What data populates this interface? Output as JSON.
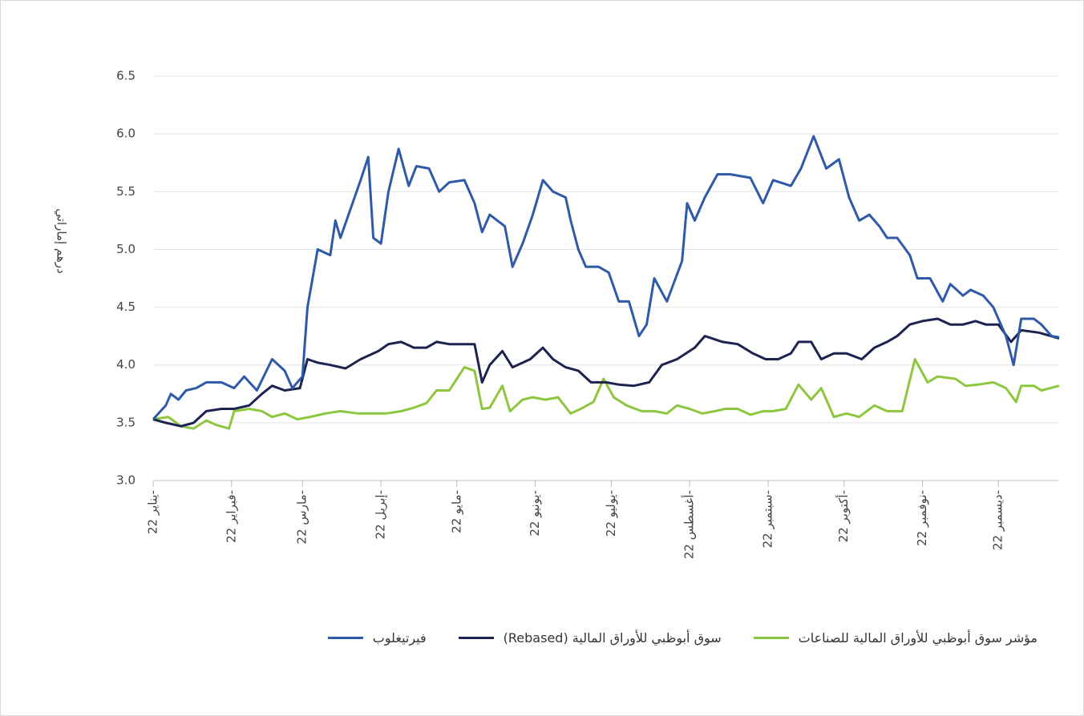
{
  "chart_data": {
    "type": "line",
    "y_label": "درهم إماراتي",
    "xlim": [
      0,
      358
    ],
    "xticks": [
      {
        "value": 0,
        "label": "يناير 22-"
      },
      {
        "value": 31,
        "label": "فبراير 22-"
      },
      {
        "value": 59,
        "label": "مارس 22-"
      },
      {
        "value": 90,
        "label": "إبريل 22-"
      },
      {
        "value": 120,
        "label": "مايو 22-"
      },
      {
        "value": 151,
        "label": "يونيو 22-"
      },
      {
        "value": 181,
        "label": "يوليو 22-"
      },
      {
        "value": 212,
        "label": "أغسطس 22-"
      },
      {
        "value": 243,
        "label": "سبتمبر 22-"
      },
      {
        "value": 273,
        "label": "أكتوبر 22-"
      },
      {
        "value": 304,
        "label": "نوفمبر 22-"
      },
      {
        "value": 334,
        "label": "ديسمبر 22-"
      }
    ],
    "ylim": [
      3,
      6.5
    ],
    "yticks": [
      {
        "value": 3,
        "label": "3.0"
      },
      3.5,
      {
        "value": 4,
        "label": "4.0"
      },
      4.5,
      {
        "value": 5,
        "label": "5.0"
      },
      5.5,
      {
        "value": 6,
        "label": "6.0"
      },
      6.5
    ],
    "grid": true,
    "legend": "bottom",
    "series": [
      {
        "name": "مؤشر سوق أبوظبي للأوراق المالية للصناعات",
        "color": "#8dc63f",
        "x": [
          0,
          6,
          11,
          16,
          21,
          25,
          30,
          32,
          38,
          43,
          47,
          52,
          57,
          62,
          68,
          74,
          81,
          85,
          92,
          98,
          103,
          108,
          112,
          117,
          123,
          127,
          130,
          133,
          138,
          141,
          146,
          150,
          155,
          160,
          165,
          169,
          174,
          178,
          182,
          187,
          193,
          198,
          203,
          207,
          212,
          217,
          222,
          226,
          231,
          236,
          241,
          245,
          250,
          255,
          260,
          264,
          269,
          274,
          279,
          285,
          290,
          296,
          301,
          306,
          310,
          317,
          321,
          326,
          332,
          337,
          341,
          343,
          348,
          351,
          358
        ],
        "values": [
          3.53,
          3.55,
          3.47,
          3.45,
          3.52,
          3.48,
          3.45,
          3.6,
          3.62,
          3.6,
          3.55,
          3.58,
          3.53,
          3.55,
          3.58,
          3.6,
          3.58,
          3.58,
          3.58,
          3.6,
          3.63,
          3.67,
          3.78,
          3.78,
          3.98,
          3.95,
          3.62,
          3.63,
          3.82,
          3.6,
          3.7,
          3.72,
          3.7,
          3.72,
          3.58,
          3.62,
          3.68,
          3.88,
          3.72,
          3.65,
          3.6,
          3.6,
          3.58,
          3.65,
          3.62,
          3.58,
          3.6,
          3.62,
          3.62,
          3.57,
          3.6,
          3.6,
          3.62,
          3.83,
          3.7,
          3.8,
          3.55,
          3.58,
          3.55,
          3.65,
          3.6,
          3.6,
          4.05,
          3.85,
          3.9,
          3.88,
          3.82,
          3.83,
          3.85,
          3.8,
          3.68,
          3.82,
          3.82,
          3.78,
          3.82
        ]
      },
      {
        "name": "سوق أبوظبي للأوراق المالية (Rebased)",
        "color": "#1c2350",
        "x": [
          0,
          5,
          11,
          16,
          21,
          27,
          32,
          38,
          43,
          47,
          52,
          58,
          61,
          65,
          70,
          76,
          82,
          89,
          93,
          98,
          103,
          108,
          112,
          117,
          127,
          130,
          133,
          138,
          142,
          149,
          154,
          158,
          163,
          168,
          173,
          179,
          184,
          190,
          196,
          201,
          207,
          214,
          218,
          225,
          231,
          237,
          242,
          247,
          252,
          255,
          260,
          264,
          269,
          274,
          280,
          285,
          290,
          294,
          299,
          304,
          310,
          315,
          320,
          325,
          329,
          334,
          339,
          343,
          350,
          358
        ],
        "values": [
          3.53,
          3.5,
          3.47,
          3.5,
          3.6,
          3.62,
          3.62,
          3.65,
          3.75,
          3.82,
          3.78,
          3.8,
          4.05,
          4.02,
          4.0,
          3.97,
          4.05,
          4.12,
          4.18,
          4.2,
          4.15,
          4.15,
          4.2,
          4.18,
          4.18,
          3.85,
          4.0,
          4.12,
          3.98,
          4.05,
          4.15,
          4.05,
          3.98,
          3.95,
          3.85,
          3.85,
          3.83,
          3.82,
          3.85,
          4.0,
          4.05,
          4.15,
          4.25,
          4.2,
          4.18,
          4.1,
          4.05,
          4.05,
          4.1,
          4.2,
          4.2,
          4.05,
          4.1,
          4.1,
          4.05,
          4.15,
          4.2,
          4.25,
          4.35,
          4.38,
          4.4,
          4.35,
          4.35,
          4.38,
          4.35,
          4.35,
          4.2,
          4.3,
          4.28,
          4.23
        ]
      },
      {
        "name": "فيرتيغلوب",
        "color": "#2e5aa8",
        "x": [
          0,
          5,
          7,
          10,
          13,
          17,
          21,
          27,
          32,
          36,
          41,
          47,
          52,
          55,
          59,
          61,
          65,
          70,
          72,
          74,
          78,
          82,
          85,
          87,
          90,
          93,
          97,
          101,
          104,
          109,
          113,
          117,
          123,
          127,
          130,
          133,
          139,
          142,
          146,
          150,
          154,
          158,
          163,
          165,
          168,
          171,
          176,
          180,
          184,
          188,
          192,
          195,
          198,
          203,
          209,
          211,
          214,
          218,
          223,
          228,
          236,
          241,
          245,
          252,
          256,
          261,
          266,
          271,
          275,
          279,
          283,
          287,
          290,
          294,
          299,
          302,
          307,
          312,
          315,
          320,
          323,
          328,
          332,
          337,
          340,
          343,
          348,
          351,
          355,
          358
        ],
        "values": [
          3.53,
          3.65,
          3.75,
          3.7,
          3.78,
          3.8,
          3.85,
          3.85,
          3.8,
          3.9,
          3.78,
          4.05,
          3.95,
          3.8,
          3.9,
          4.5,
          5.0,
          4.95,
          5.25,
          5.1,
          5.35,
          5.6,
          5.8,
          5.1,
          5.05,
          5.5,
          5.87,
          5.55,
          5.72,
          5.7,
          5.5,
          5.58,
          5.6,
          5.4,
          5.15,
          5.3,
          5.2,
          4.85,
          5.05,
          5.3,
          5.6,
          5.5,
          5.45,
          5.25,
          5.0,
          4.85,
          4.85,
          4.8,
          4.55,
          4.55,
          4.25,
          4.35,
          4.75,
          4.55,
          4.9,
          5.4,
          5.25,
          5.45,
          5.65,
          5.65,
          5.62,
          5.4,
          5.6,
          5.55,
          5.7,
          5.98,
          5.7,
          5.78,
          5.45,
          5.25,
          5.3,
          5.2,
          5.1,
          5.1,
          4.95,
          4.75,
          4.75,
          4.55,
          4.7,
          4.6,
          4.65,
          4.6,
          4.5,
          4.25,
          4.0,
          4.4,
          4.4,
          4.35,
          4.25,
          4.24
        ]
      }
    ]
  }
}
